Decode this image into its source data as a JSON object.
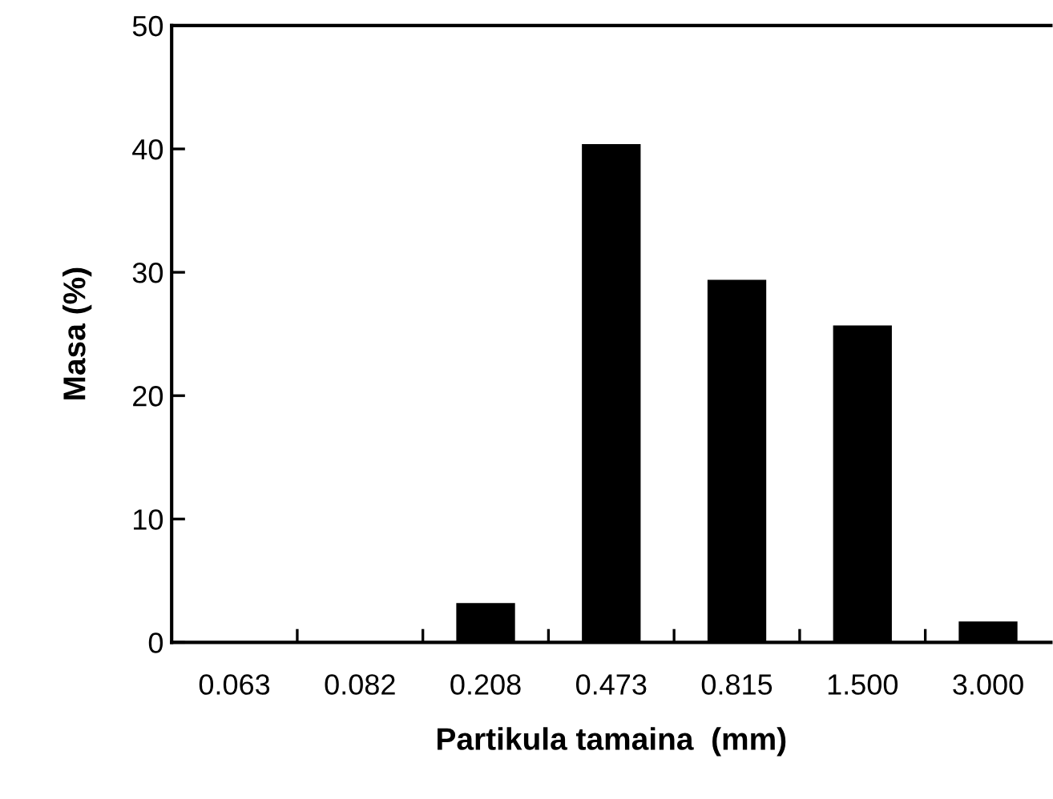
{
  "chart_data": {
    "type": "bar",
    "xlabel": "Partikula tamaina  (mm)",
    "ylabel": "Masa (%)",
    "categories": [
      "0.063",
      "0.082",
      "0.208",
      "0.473",
      "0.815",
      "1.500",
      "3.000"
    ],
    "values": [
      0,
      0,
      3.1,
      40.3,
      29.3,
      25.6,
      1.6
    ],
    "color": "#000000",
    "ylim": [
      0,
      50
    ],
    "yticks": [
      0,
      10,
      20,
      30,
      40,
      50
    ],
    "grid": false,
    "legend": false
  }
}
